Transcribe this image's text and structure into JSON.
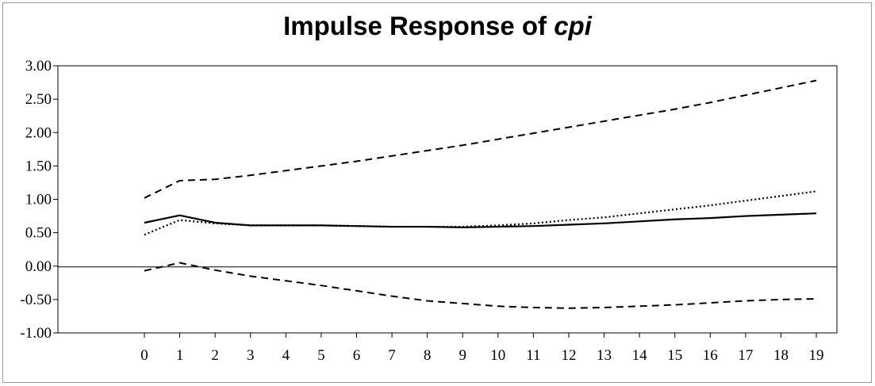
{
  "chart_data": {
    "type": "line",
    "title": "Impulse Response of ",
    "title_variable": "cpi",
    "xlabel": "",
    "ylabel": "",
    "x": [
      0,
      1,
      2,
      3,
      4,
      5,
      6,
      7,
      8,
      9,
      10,
      11,
      12,
      13,
      14,
      15,
      16,
      17,
      18,
      19
    ],
    "x_tick_labels": [
      "0",
      "1",
      "2",
      "3",
      "4",
      "5",
      "6",
      "7",
      "8",
      "9",
      "10",
      "11",
      "12",
      "13",
      "14",
      "15",
      "16",
      "17",
      "18",
      "19"
    ],
    "y_tick_labels": [
      "3.00",
      "2.50",
      "2.00",
      "1.50",
      "1.00",
      "0.50",
      "0.00",
      "-0.50",
      "-1.00"
    ],
    "y_ticks": [
      3.0,
      2.5,
      2.0,
      1.5,
      1.0,
      0.5,
      0.0,
      -0.5,
      -1.0
    ],
    "ylim": [
      -1.0,
      3.0
    ],
    "grid": false,
    "zero_line": true,
    "legend": "none",
    "series": [
      {
        "style": "dashed",
        "color": "#000000",
        "values": [
          1.02,
          1.28,
          1.3,
          1.36,
          1.43,
          1.5,
          1.57,
          1.65,
          1.73,
          1.81,
          1.9,
          1.99,
          2.08,
          2.17,
          2.26,
          2.35,
          2.45,
          2.56,
          2.67,
          2.78
        ]
      },
      {
        "style": "dotted",
        "color": "#000000",
        "values": [
          0.47,
          0.69,
          0.64,
          0.61,
          0.61,
          0.61,
          0.6,
          0.59,
          0.59,
          0.59,
          0.61,
          0.64,
          0.69,
          0.73,
          0.79,
          0.85,
          0.91,
          0.98,
          1.05,
          1.12
        ]
      },
      {
        "style": "solid",
        "color": "#000000",
        "values": [
          0.65,
          0.76,
          0.65,
          0.61,
          0.61,
          0.61,
          0.6,
          0.59,
          0.59,
          0.58,
          0.59,
          0.6,
          0.62,
          0.64,
          0.67,
          0.7,
          0.72,
          0.75,
          0.77,
          0.79
        ]
      },
      {
        "style": "dashed",
        "color": "#000000",
        "values": [
          -0.07,
          0.05,
          -0.06,
          -0.15,
          -0.22,
          -0.29,
          -0.37,
          -0.45,
          -0.52,
          -0.56,
          -0.6,
          -0.62,
          -0.63,
          -0.62,
          -0.6,
          -0.58,
          -0.55,
          -0.52,
          -0.5,
          -0.49
        ]
      }
    ]
  }
}
